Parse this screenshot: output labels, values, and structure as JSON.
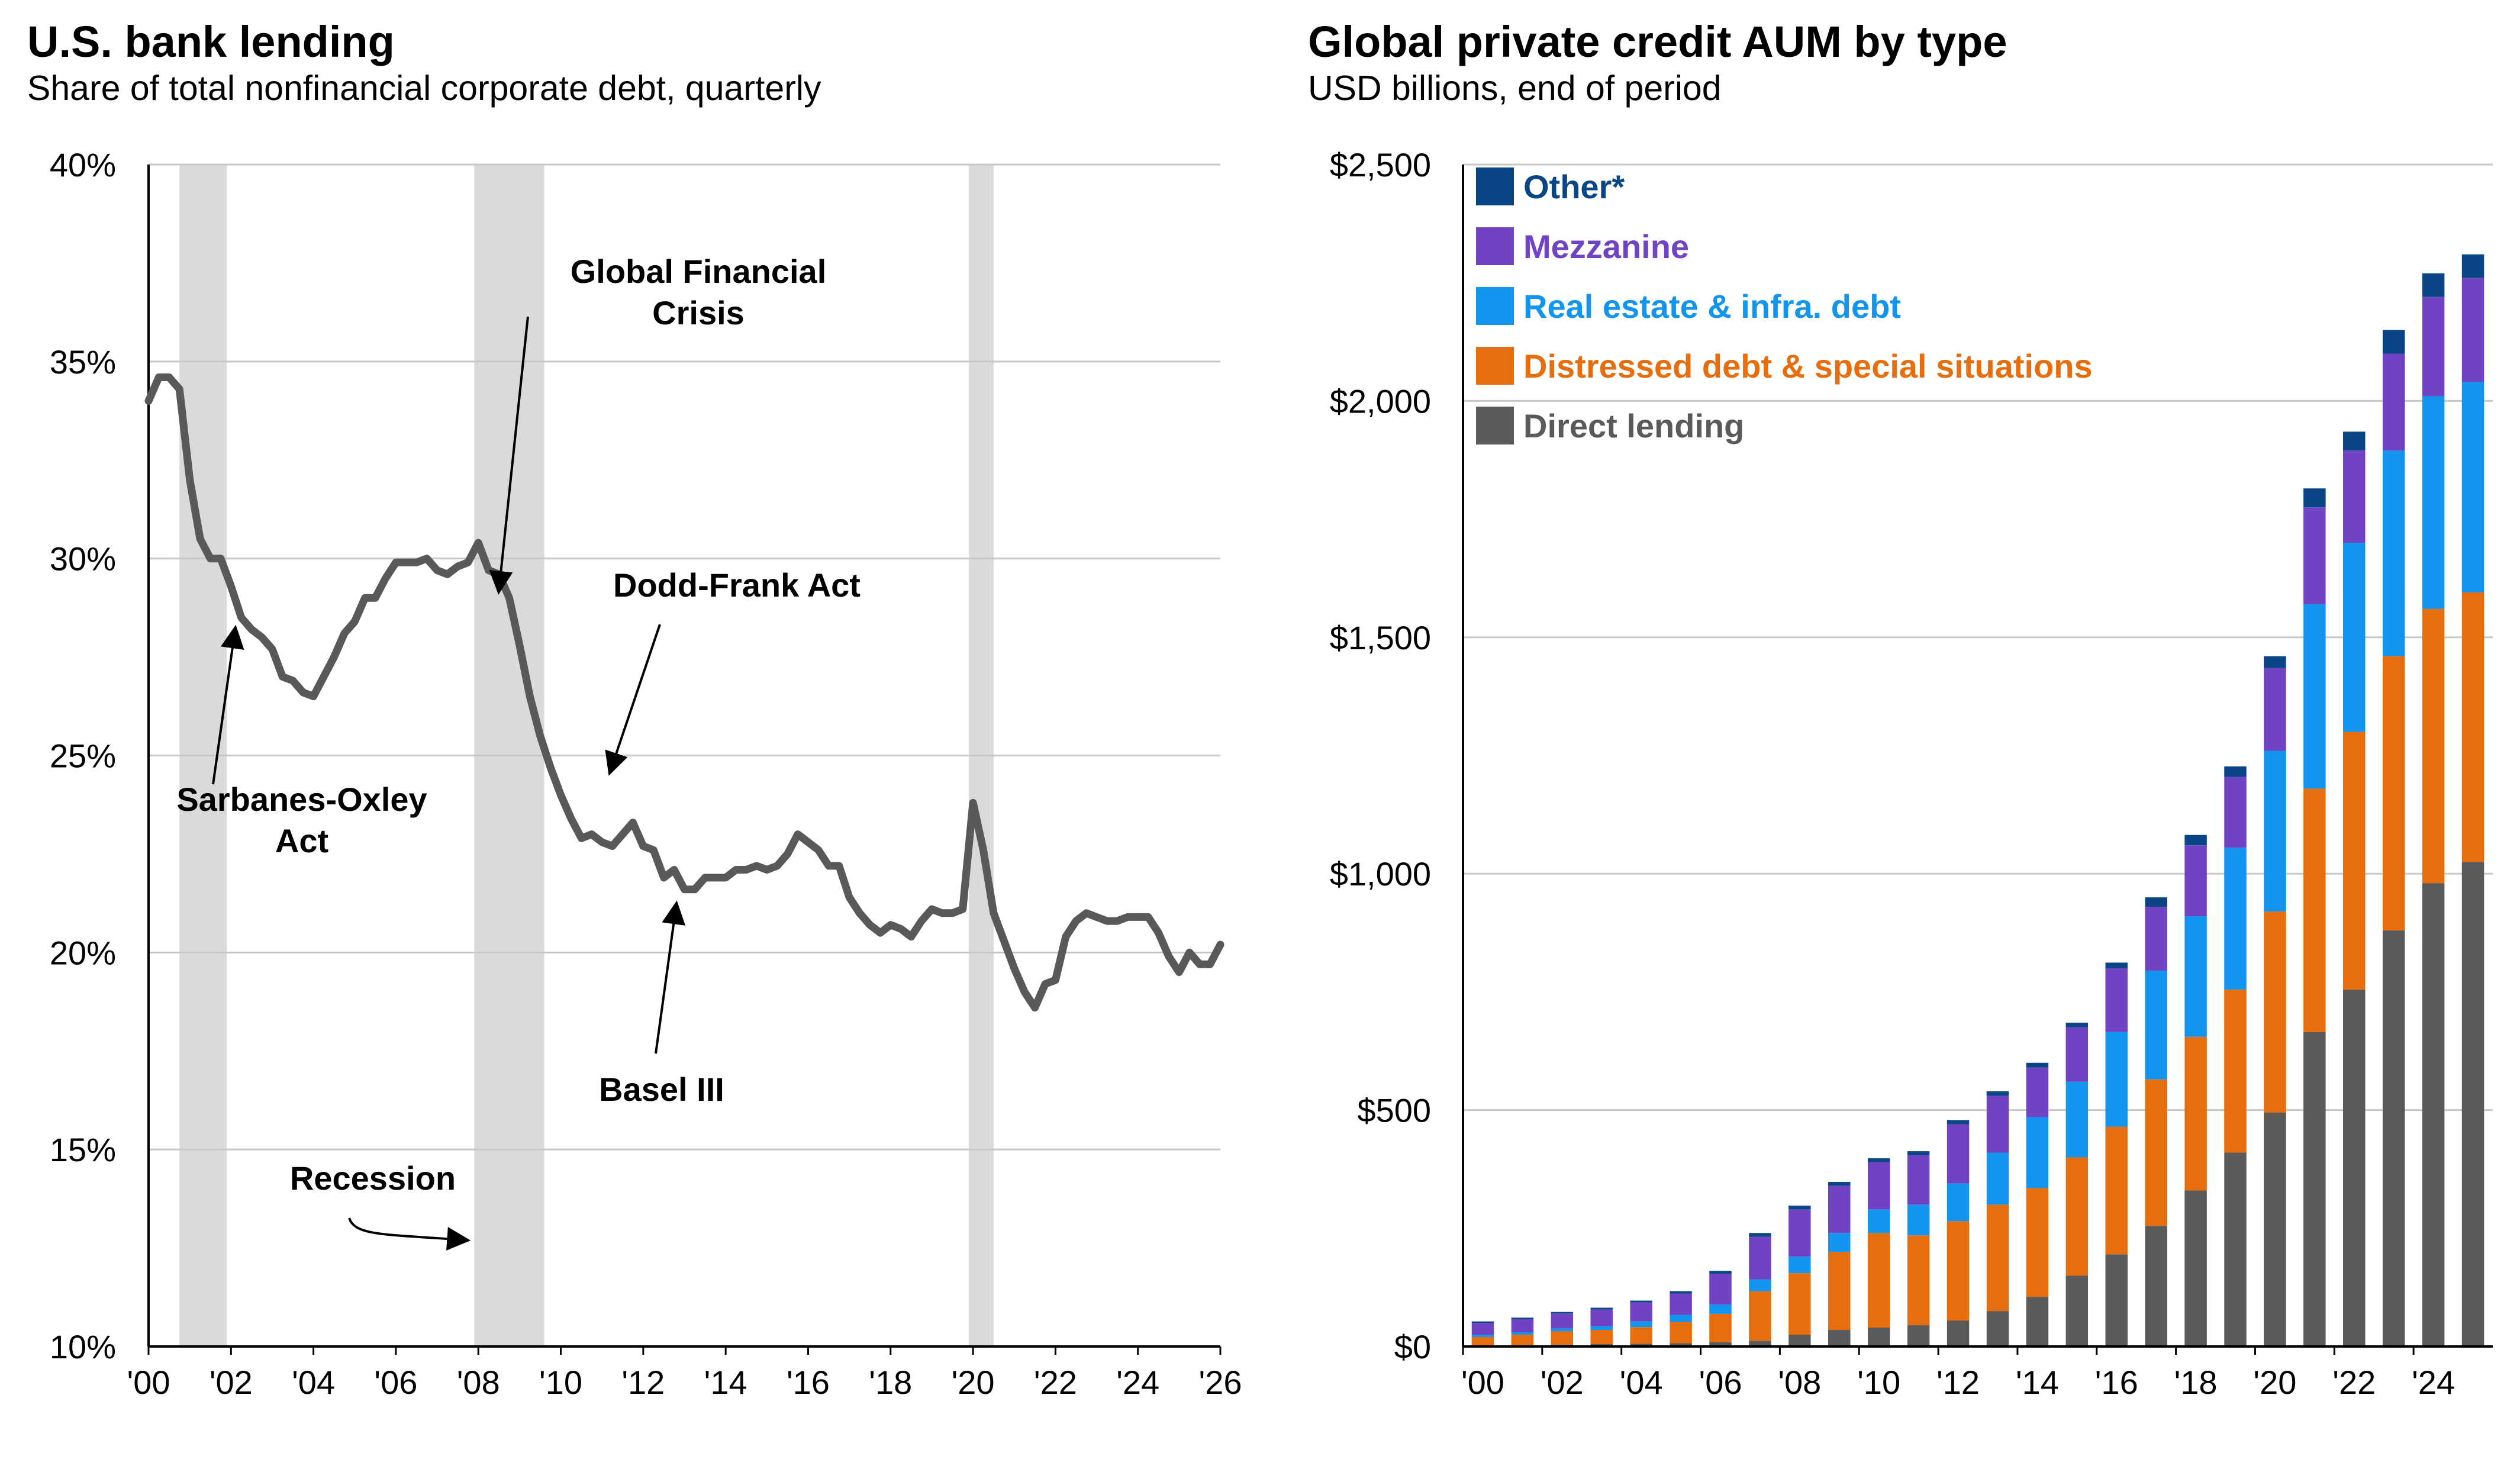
{
  "charts": {
    "left": {
      "title": "U.S. bank lending",
      "subtitle": "Share of total nonfinancial corporate debt, quarterly"
    },
    "right": {
      "title": "Global private credit AUM by type",
      "subtitle": "USD billions, end of period"
    }
  },
  "chart_data": [
    {
      "type": "line",
      "title": "U.S. bank lending",
      "subtitle": "Share of total nonfinancial corporate debt, quarterly",
      "xlabel": "",
      "ylabel": "",
      "xlim": [
        2000,
        2026
      ],
      "ylim": [
        10,
        40
      ],
      "grid": true,
      "y_ticks": [
        "10%",
        "15%",
        "20%",
        "25%",
        "30%",
        "35%",
        "40%"
      ],
      "x_ticks": [
        "'00",
        "'02",
        "'04",
        "'06",
        "'08",
        "'10",
        "'12",
        "'14",
        "'16",
        "'18",
        "'20",
        "'22",
        "'24",
        "'26"
      ],
      "line_color": "#595959",
      "recession_color": "#d9dadc",
      "recessions": [
        [
          2000.75,
          2001.9
        ],
        [
          2007.9,
          2009.6
        ],
        [
          2019.9,
          2020.5
        ]
      ],
      "series": [
        {
          "values": [
            [
              2000.0,
              34.0
            ],
            [
              2000.25,
              34.6
            ],
            [
              2000.5,
              34.6
            ],
            [
              2000.75,
              34.3
            ],
            [
              2001.0,
              32.0
            ],
            [
              2001.25,
              30.5
            ],
            [
              2001.5,
              30.0
            ],
            [
              2001.75,
              30.0
            ],
            [
              2002.0,
              29.3
            ],
            [
              2002.25,
              28.5
            ],
            [
              2002.5,
              28.2
            ],
            [
              2002.75,
              28.0
            ],
            [
              2003.0,
              27.7
            ],
            [
              2003.25,
              27.0
            ],
            [
              2003.5,
              26.9
            ],
            [
              2003.75,
              26.6
            ],
            [
              2004.0,
              26.5
            ],
            [
              2004.25,
              27.0
            ],
            [
              2004.5,
              27.5
            ],
            [
              2004.75,
              28.1
            ],
            [
              2005.0,
              28.4
            ],
            [
              2005.25,
              29.0
            ],
            [
              2005.5,
              29.0
            ],
            [
              2005.75,
              29.5
            ],
            [
              2006.0,
              29.9
            ],
            [
              2006.25,
              29.9
            ],
            [
              2006.5,
              29.9
            ],
            [
              2006.75,
              30.0
            ],
            [
              2007.0,
              29.7
            ],
            [
              2007.25,
              29.6
            ],
            [
              2007.5,
              29.8
            ],
            [
              2007.75,
              29.9
            ],
            [
              2008.0,
              30.4
            ],
            [
              2008.25,
              29.7
            ],
            [
              2008.5,
              29.6
            ],
            [
              2008.75,
              29.0
            ],
            [
              2009.0,
              27.8
            ],
            [
              2009.25,
              26.5
            ],
            [
              2009.5,
              25.5
            ],
            [
              2009.75,
              24.7
            ],
            [
              2010.0,
              24.0
            ],
            [
              2010.25,
              23.4
            ],
            [
              2010.5,
              22.9
            ],
            [
              2010.75,
              23.0
            ],
            [
              2011.0,
              22.8
            ],
            [
              2011.25,
              22.7
            ],
            [
              2011.5,
              23.0
            ],
            [
              2011.75,
              23.3
            ],
            [
              2012.0,
              22.7
            ],
            [
              2012.25,
              22.6
            ],
            [
              2012.5,
              21.9
            ],
            [
              2012.75,
              22.1
            ],
            [
              2013.0,
              21.6
            ],
            [
              2013.25,
              21.6
            ],
            [
              2013.5,
              21.9
            ],
            [
              2013.75,
              21.9
            ],
            [
              2014.0,
              21.9
            ],
            [
              2014.25,
              22.1
            ],
            [
              2014.5,
              22.1
            ],
            [
              2014.75,
              22.2
            ],
            [
              2015.0,
              22.1
            ],
            [
              2015.25,
              22.2
            ],
            [
              2015.5,
              22.5
            ],
            [
              2015.75,
              23.0
            ],
            [
              2016.0,
              22.8
            ],
            [
              2016.25,
              22.6
            ],
            [
              2016.5,
              22.2
            ],
            [
              2016.75,
              22.2
            ],
            [
              2017.0,
              21.4
            ],
            [
              2017.25,
              21.0
            ],
            [
              2017.5,
              20.7
            ],
            [
              2017.75,
              20.5
            ],
            [
              2018.0,
              20.7
            ],
            [
              2018.25,
              20.6
            ],
            [
              2018.5,
              20.4
            ],
            [
              2018.75,
              20.8
            ],
            [
              2019.0,
              21.1
            ],
            [
              2019.25,
              21.0
            ],
            [
              2019.5,
              21.0
            ],
            [
              2019.75,
              21.1
            ],
            [
              2020.0,
              23.8
            ],
            [
              2020.25,
              22.6
            ],
            [
              2020.5,
              21.0
            ],
            [
              2020.75,
              20.3
            ],
            [
              2021.0,
              19.6
            ],
            [
              2021.25,
              19.0
            ],
            [
              2021.5,
              18.6
            ],
            [
              2021.75,
              19.2
            ],
            [
              2022.0,
              19.3
            ],
            [
              2022.25,
              20.4
            ],
            [
              2022.5,
              20.8
            ],
            [
              2022.75,
              21.0
            ],
            [
              2023.0,
              20.9
            ],
            [
              2023.25,
              20.8
            ],
            [
              2023.5,
              20.8
            ],
            [
              2023.75,
              20.9
            ],
            [
              2024.0,
              20.9
            ],
            [
              2024.25,
              20.9
            ],
            [
              2024.5,
              20.5
            ],
            [
              2024.75,
              19.9
            ],
            [
              2025.0,
              19.5
            ],
            [
              2025.25,
              20.0
            ],
            [
              2025.5,
              19.7
            ],
            [
              2025.75,
              19.7
            ],
            [
              2026.0,
              20.2
            ]
          ]
        }
      ],
      "annotations": [
        {
          "lines": [
            "Global Financial",
            "Crisis"
          ],
          "arrow_to": [
            2008.5,
            29.2
          ]
        },
        {
          "lines": [
            "Dodd-Frank Act"
          ],
          "arrow_to": [
            2011.2,
            24.6
          ]
        },
        {
          "lines": [
            "Sarbanes-Oxley",
            "Act"
          ],
          "arrow_to": [
            2002.1,
            28.2
          ]
        },
        {
          "lines": [
            "Basel III"
          ],
          "arrow_to": [
            2012.8,
            21.2
          ]
        },
        {
          "lines": [
            "Recession"
          ],
          "arrow_to": [
            2007.7,
            12.7
          ]
        }
      ]
    },
    {
      "type": "bar",
      "stacked": true,
      "title": "Global private credit AUM by type",
      "subtitle": "USD billions, end of period",
      "xlabel": "",
      "ylabel": "",
      "ylim": [
        0,
        2500
      ],
      "grid": true,
      "legend": "top-left",
      "y_ticks": [
        "$0",
        "$500",
        "$1,000",
        "$1,500",
        "$2,000",
        "$2,500"
      ],
      "x_ticks": [
        "'00",
        "'02",
        "'04",
        "'06",
        "'08",
        "'10",
        "'12",
        "'14",
        "'16",
        "'18",
        "'20",
        "'22",
        "'24"
      ],
      "categories": [
        "2000",
        "2001",
        "2002",
        "2003",
        "2004",
        "2005",
        "2006",
        "2007",
        "2008",
        "2009",
        "2010",
        "2011",
        "2012",
        "2013",
        "2014",
        "2015",
        "2016",
        "2017",
        "2018",
        "2019",
        "2020",
        "2021",
        "2022",
        "2023",
        "2024",
        "2025"
      ],
      "series": [
        {
          "name": "Direct lending",
          "color": "#595a5c",
          "values": [
            2,
            3,
            4,
            5,
            6,
            7,
            9,
            12,
            25,
            35,
            40,
            45,
            55,
            75,
            105,
            150,
            195,
            255,
            330,
            410,
            495,
            665,
            755,
            880,
            980,
            1025
          ]
        },
        {
          "name": "Distressed debt & special situations",
          "color": "#e86d0c",
          "values": [
            18,
            22,
            28,
            30,
            35,
            45,
            60,
            105,
            130,
            165,
            200,
            190,
            210,
            225,
            230,
            250,
            270,
            310,
            325,
            345,
            425,
            515,
            545,
            580,
            580,
            570
          ]
        },
        {
          "name": "Real estate & infra. debt",
          "color": "#1295ef",
          "values": [
            5,
            5,
            6,
            8,
            12,
            15,
            20,
            25,
            35,
            40,
            50,
            65,
            80,
            110,
            150,
            160,
            200,
            230,
            255,
            300,
            340,
            390,
            400,
            435,
            450,
            445
          ]
        },
        {
          "name": "Mezzanine",
          "color": "#7043c4",
          "values": [
            25,
            28,
            32,
            35,
            40,
            45,
            65,
            90,
            100,
            100,
            100,
            105,
            125,
            120,
            105,
            115,
            135,
            135,
            150,
            150,
            175,
            205,
            195,
            205,
            210,
            220
          ]
        },
        {
          "name": "Other*",
          "color": "#0a4585",
          "values": [
            3,
            3,
            3,
            4,
            4,
            5,
            6,
            8,
            8,
            8,
            8,
            8,
            9,
            10,
            10,
            10,
            12,
            20,
            22,
            22,
            25,
            40,
            40,
            50,
            50,
            50
          ]
        }
      ]
    }
  ]
}
